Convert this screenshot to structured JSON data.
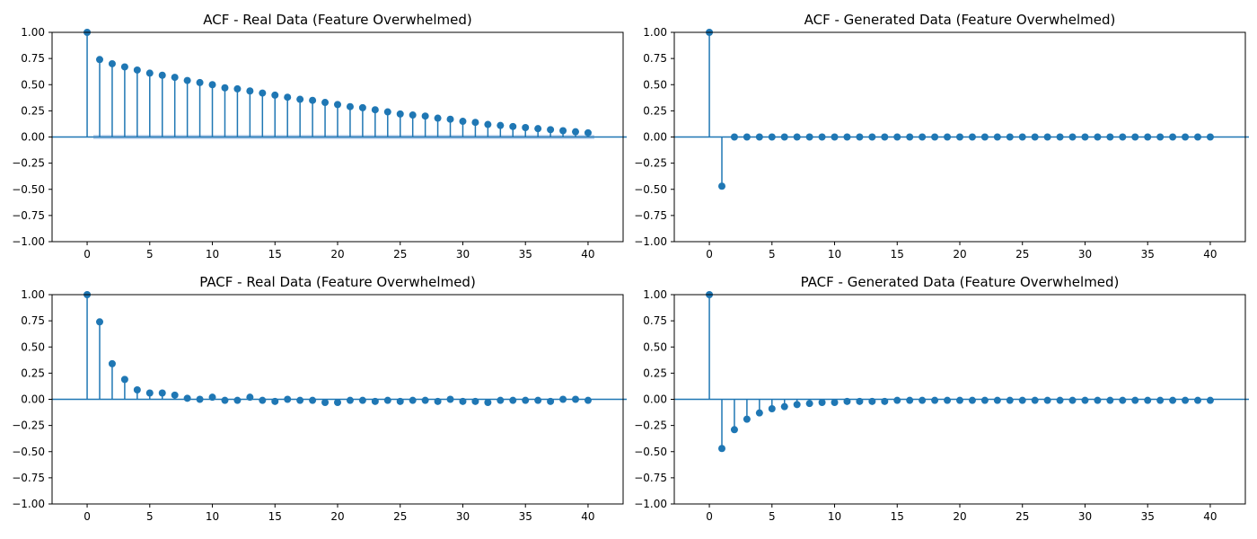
{
  "colors": {
    "stem": "#1f77b4",
    "band": "#aec7e8",
    "axis": "#000000"
  },
  "chart_data": [
    {
      "type": "stem",
      "title": "ACF - Real Data (Feature Overwhelmed)",
      "xlabel": "",
      "ylabel": "",
      "xlim": [
        -2.8,
        42.8
      ],
      "ylim": [
        -1.0,
        1.0
      ],
      "xticks": [
        0,
        5,
        10,
        15,
        20,
        25,
        30,
        35,
        40
      ],
      "xtick_labels": [
        "0",
        "5",
        "10",
        "15",
        "20",
        "25",
        "30",
        "35",
        "40"
      ],
      "yticks": [
        -1.0,
        -0.75,
        -0.5,
        -0.25,
        0.0,
        0.25,
        0.5,
        0.75,
        1.0
      ],
      "ytick_labels": [
        "−1.00",
        "−0.75",
        "−0.50",
        "−0.25",
        "0.00",
        "0.25",
        "0.50",
        "0.75",
        "1.00"
      ],
      "grid": false,
      "confidence_band": {
        "lower": -0.02,
        "upper": 0.02
      },
      "lags": [
        0,
        1,
        2,
        3,
        4,
        5,
        6,
        7,
        8,
        9,
        10,
        11,
        12,
        13,
        14,
        15,
        16,
        17,
        18,
        19,
        20,
        21,
        22,
        23,
        24,
        25,
        26,
        27,
        28,
        29,
        30,
        31,
        32,
        33,
        34,
        35,
        36,
        37,
        38,
        39,
        40
      ],
      "values": [
        1.0,
        0.74,
        0.7,
        0.67,
        0.64,
        0.61,
        0.59,
        0.57,
        0.54,
        0.52,
        0.5,
        0.47,
        0.46,
        0.44,
        0.42,
        0.4,
        0.38,
        0.36,
        0.35,
        0.33,
        0.31,
        0.29,
        0.28,
        0.26,
        0.24,
        0.22,
        0.21,
        0.2,
        0.18,
        0.17,
        0.15,
        0.14,
        0.12,
        0.11,
        0.1,
        0.09,
        0.08,
        0.07,
        0.06,
        0.05,
        0.04
      ]
    },
    {
      "type": "stem",
      "title": "ACF - Generated Data (Feature Overwhelmed)",
      "xlabel": "",
      "ylabel": "",
      "xlim": [
        -2.8,
        42.8
      ],
      "ylim": [
        -1.0,
        1.0
      ],
      "xticks": [
        0,
        5,
        10,
        15,
        20,
        25,
        30,
        35,
        40
      ],
      "xtick_labels": [
        "0",
        "5",
        "10",
        "15",
        "20",
        "25",
        "30",
        "35",
        "40"
      ],
      "yticks": [
        -1.0,
        -0.75,
        -0.5,
        -0.25,
        0.0,
        0.25,
        0.5,
        0.75,
        1.0
      ],
      "ytick_labels": [
        "−1.00",
        "−0.75",
        "−0.50",
        "−0.25",
        "0.00",
        "0.25",
        "0.50",
        "0.75",
        "1.00"
      ],
      "grid": false,
      "lags": [
        0,
        1,
        2,
        3,
        4,
        5,
        6,
        7,
        8,
        9,
        10,
        11,
        12,
        13,
        14,
        15,
        16,
        17,
        18,
        19,
        20,
        21,
        22,
        23,
        24,
        25,
        26,
        27,
        28,
        29,
        30,
        31,
        32,
        33,
        34,
        35,
        36,
        37,
        38,
        39,
        40
      ],
      "values": [
        1.0,
        -0.47,
        0,
        0,
        0,
        0,
        0,
        0,
        0,
        0,
        0,
        0,
        0,
        0,
        0,
        0,
        0,
        0,
        0,
        0,
        0,
        0,
        0,
        0,
        0,
        0,
        0,
        0,
        0,
        0,
        0,
        0,
        0,
        0,
        0,
        0,
        0,
        0,
        0,
        0,
        0
      ]
    },
    {
      "type": "stem",
      "title": "PACF - Real Data (Feature Overwhelmed)",
      "xlabel": "",
      "ylabel": "",
      "xlim": [
        -2.8,
        42.8
      ],
      "ylim": [
        -1.0,
        1.0
      ],
      "xticks": [
        0,
        5,
        10,
        15,
        20,
        25,
        30,
        35,
        40
      ],
      "xtick_labels": [
        "0",
        "5",
        "10",
        "15",
        "20",
        "25",
        "30",
        "35",
        "40"
      ],
      "yticks": [
        -1.0,
        -0.75,
        -0.5,
        -0.25,
        0.0,
        0.25,
        0.5,
        0.75,
        1.0
      ],
      "ytick_labels": [
        "−1.00",
        "−0.75",
        "−0.50",
        "−0.25",
        "0.00",
        "0.25",
        "0.50",
        "0.75",
        "1.00"
      ],
      "grid": false,
      "lags": [
        0,
        1,
        2,
        3,
        4,
        5,
        6,
        7,
        8,
        9,
        10,
        11,
        12,
        13,
        14,
        15,
        16,
        17,
        18,
        19,
        20,
        21,
        22,
        23,
        24,
        25,
        26,
        27,
        28,
        29,
        30,
        31,
        32,
        33,
        34,
        35,
        36,
        37,
        38,
        39,
        40
      ],
      "values": [
        1.0,
        0.74,
        0.34,
        0.19,
        0.09,
        0.06,
        0.06,
        0.04,
        0.01,
        0.0,
        0.02,
        -0.01,
        -0.01,
        0.02,
        -0.01,
        -0.02,
        0.0,
        -0.01,
        -0.01,
        -0.03,
        -0.03,
        -0.01,
        -0.01,
        -0.02,
        -0.01,
        -0.02,
        -0.01,
        -0.01,
        -0.02,
        0.0,
        -0.02,
        -0.02,
        -0.03,
        -0.01,
        -0.01,
        -0.01,
        -0.01,
        -0.02,
        0.0,
        0.0,
        -0.01
      ]
    },
    {
      "type": "stem",
      "title": "PACF - Generated Data (Feature Overwhelmed)",
      "xlabel": "",
      "ylabel": "",
      "xlim": [
        -2.8,
        42.8
      ],
      "ylim": [
        -1.0,
        1.0
      ],
      "xticks": [
        0,
        5,
        10,
        15,
        20,
        25,
        30,
        35,
        40
      ],
      "xtick_labels": [
        "0",
        "5",
        "10",
        "15",
        "20",
        "25",
        "30",
        "35",
        "40"
      ],
      "yticks": [
        -1.0,
        -0.75,
        -0.5,
        -0.25,
        0.0,
        0.25,
        0.5,
        0.75,
        1.0
      ],
      "ytick_labels": [
        "−1.00",
        "−0.75",
        "−0.50",
        "−0.25",
        "0.00",
        "0.25",
        "0.50",
        "0.75",
        "1.00"
      ],
      "grid": false,
      "lags": [
        0,
        1,
        2,
        3,
        4,
        5,
        6,
        7,
        8,
        9,
        10,
        11,
        12,
        13,
        14,
        15,
        16,
        17,
        18,
        19,
        20,
        21,
        22,
        23,
        24,
        25,
        26,
        27,
        28,
        29,
        30,
        31,
        32,
        33,
        34,
        35,
        36,
        37,
        38,
        39,
        40
      ],
      "values": [
        1.0,
        -0.47,
        -0.29,
        -0.19,
        -0.13,
        -0.09,
        -0.07,
        -0.05,
        -0.04,
        -0.03,
        -0.03,
        -0.02,
        -0.02,
        -0.02,
        -0.02,
        -0.01,
        -0.01,
        -0.01,
        -0.01,
        -0.01,
        -0.01,
        -0.01,
        -0.01,
        -0.01,
        -0.01,
        -0.01,
        -0.01,
        -0.01,
        -0.01,
        -0.01,
        -0.01,
        -0.01,
        -0.01,
        -0.01,
        -0.01,
        -0.01,
        -0.01,
        -0.01,
        -0.01,
        -0.01,
        -0.01
      ]
    }
  ]
}
